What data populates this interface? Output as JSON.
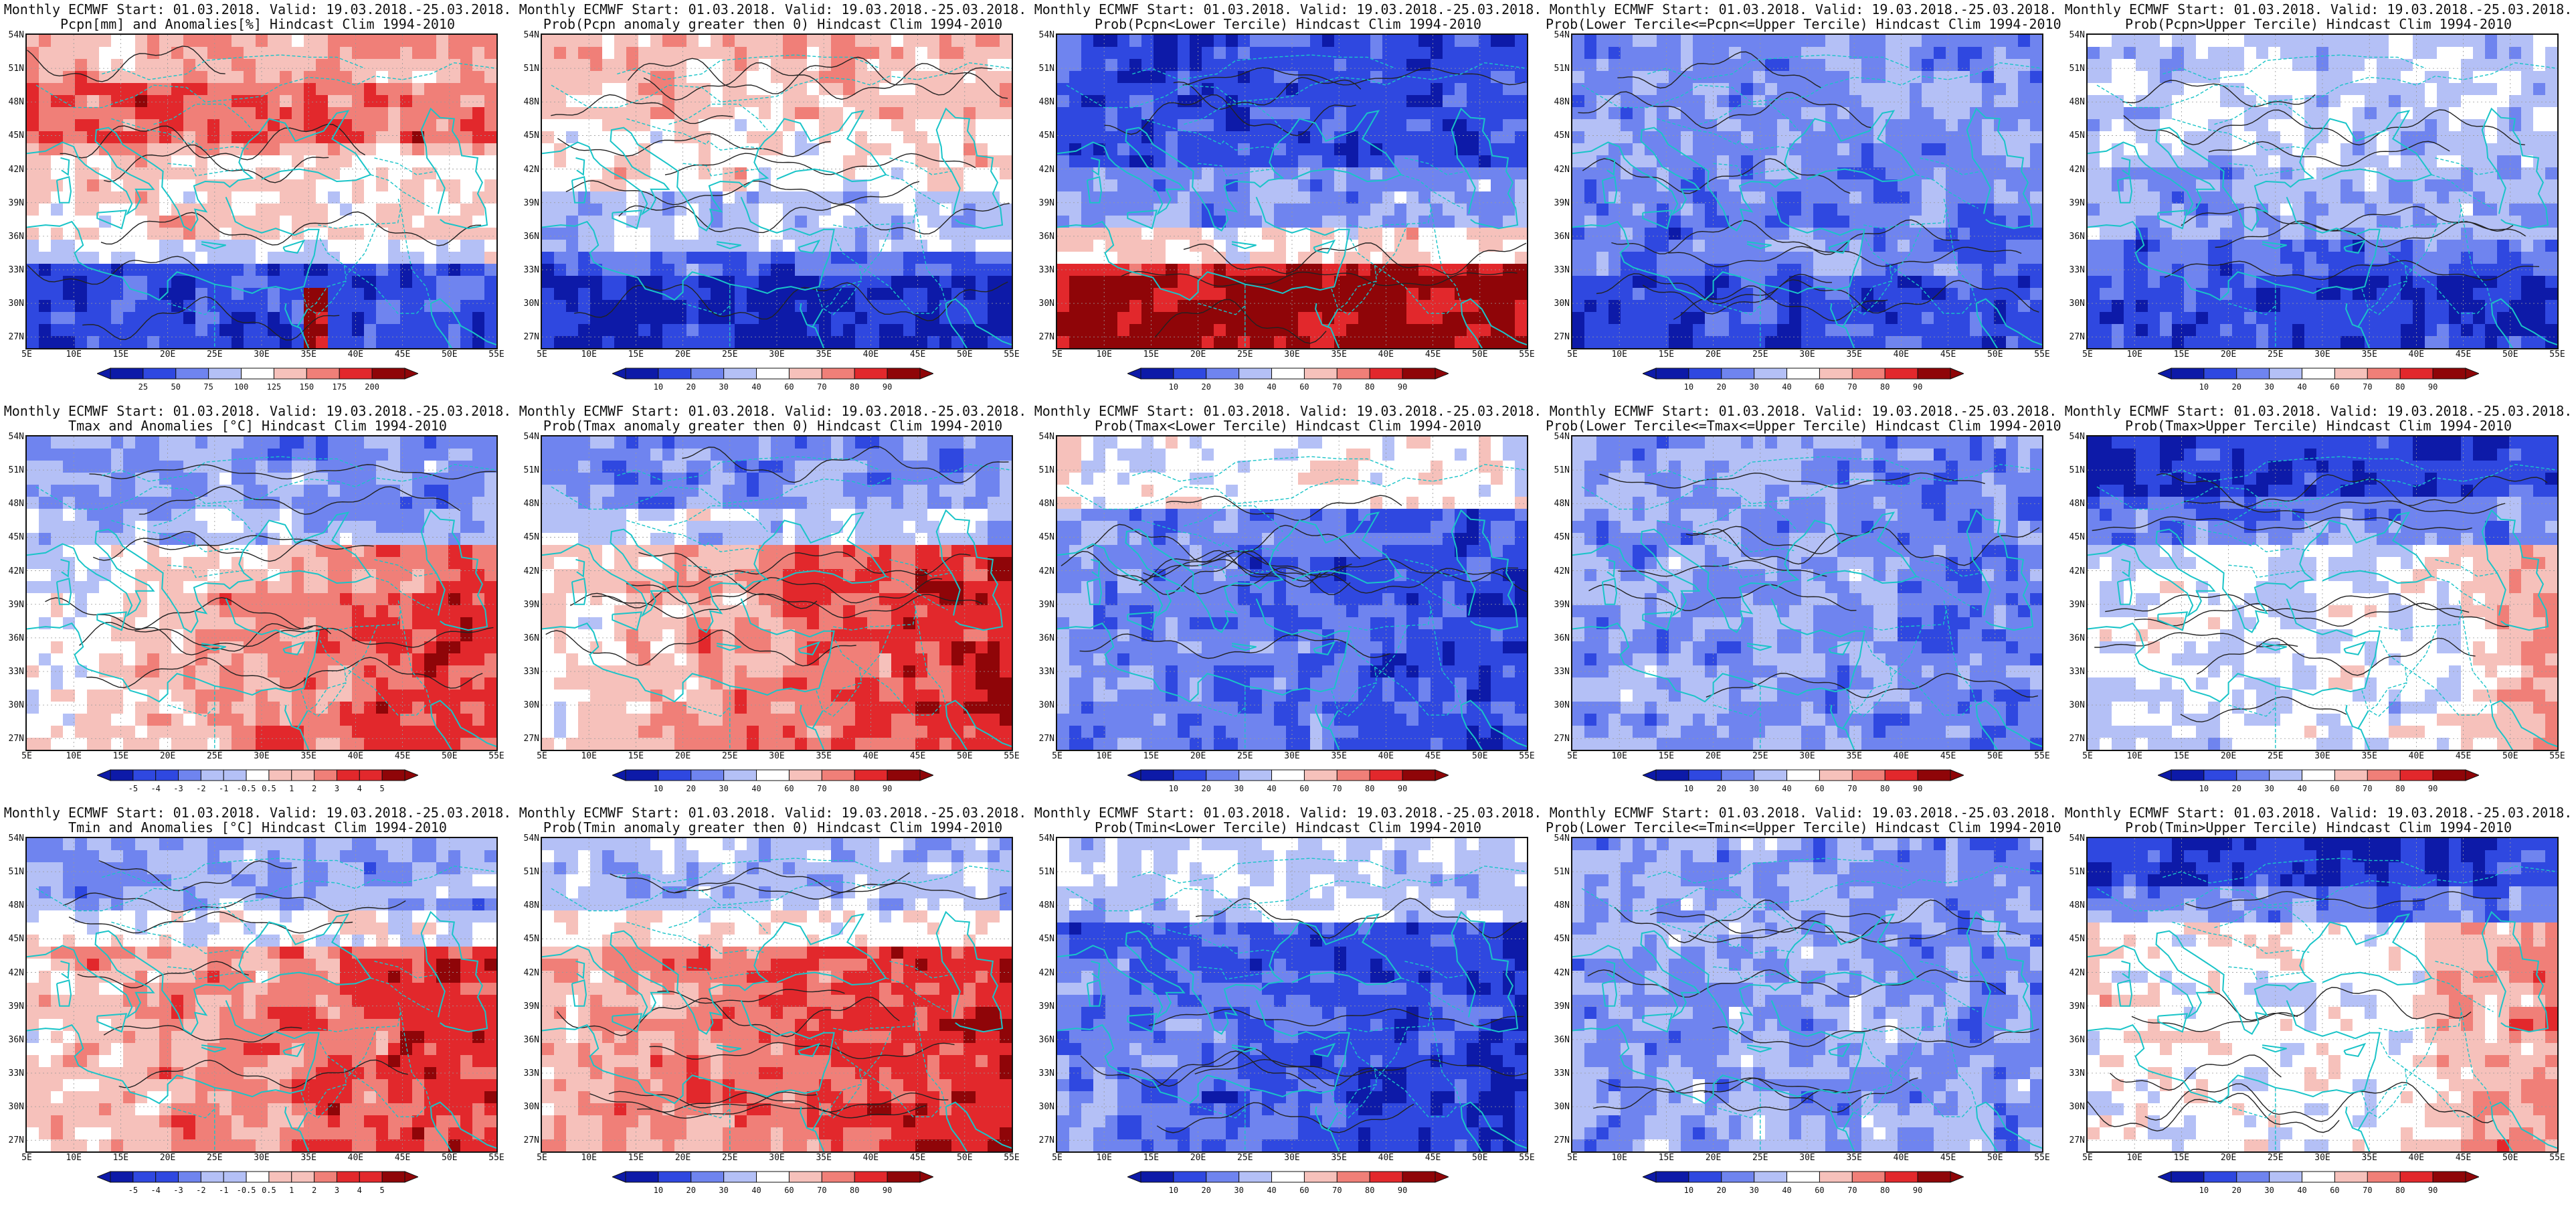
{
  "colors": {
    "blue_dark": "#0d1aa8",
    "blue": "#2f48e0",
    "blue_mid": "#6f84ef",
    "blue_light": "#b4c0f6",
    "white": "#ffffff",
    "red_light": "#f6c1bb",
    "red_mid": "#f07f78",
    "red": "#e2282c",
    "red_dark": "#8f0508",
    "coast": "#1ac4c8",
    "contour": "#222222"
  },
  "axes": {
    "lat_labels": [
      "54N",
      "51N",
      "48N",
      "45N",
      "42N",
      "39N",
      "36N",
      "33N",
      "30N",
      "27N"
    ],
    "lon_labels": [
      "5E",
      "10E",
      "15E",
      "20E",
      "25E",
      "30E",
      "35E",
      "40E",
      "45E",
      "50E",
      "55E"
    ]
  },
  "panels": [
    {
      "id": "p1",
      "title1": "Monthly ECMWF Start: 01.03.2018. Valid: 19.03.2018.-25.03.2018.",
      "title2": "Pcpn[mm] and Anomalies[%] Hindcast Clim 1994-2010",
      "colorbar": [
        "25",
        "50",
        "75",
        "100",
        "125",
        "150",
        "175",
        "200"
      ],
      "field": "pcpn_anom"
    },
    {
      "id": "p2",
      "title1": "Monthly ECMWF Start: 01.03.2018. Valid: 19.03.2018.-25.03.2018.",
      "title2": "Prob(Pcpn anomaly greater then 0) Hindcast Clim 1994-2010",
      "colorbar": [
        "10",
        "20",
        "30",
        "40",
        "60",
        "70",
        "80",
        "90"
      ],
      "field": "pcpn_pos"
    },
    {
      "id": "p3",
      "title1": "Monthly ECMWF Start: 01.03.2018. Valid: 19.03.2018.-25.03.2018.",
      "title2": "Prob(Pcpn<Lower Tercile) Hindcast Clim 1994-2010",
      "colorbar": [
        "10",
        "20",
        "30",
        "40",
        "60",
        "70",
        "80",
        "90"
      ],
      "field": "pcpn_low"
    },
    {
      "id": "p4",
      "title1": "Monthly ECMWF Start: 01.03.2018. Valid: 19.03.2018.-25.03.2018.",
      "title2": "Prob(Lower Tercile<=Pcpn<=Upper Tercile) Hindcast Clim 1994-2010",
      "colorbar": [
        "10",
        "20",
        "30",
        "40",
        "60",
        "70",
        "80",
        "90"
      ],
      "field": "pcpn_mid"
    },
    {
      "id": "p5",
      "title1": "Monthly ECMWF Start: 01.03.2018. Valid: 19.03.2018.-25.03.2018.",
      "title2": "Prob(Pcpn>Upper Tercile) Hindcast Clim 1994-2010",
      "colorbar": [
        "10",
        "20",
        "30",
        "40",
        "60",
        "70",
        "80",
        "90"
      ],
      "field": "pcpn_high"
    },
    {
      "id": "p6",
      "title1": "Monthly ECMWF Start: 01.03.2018. Valid: 19.03.2018.-25.03.2018.",
      "title2": "Tmax and Anomalies [°C] Hindcast Clim 1994-2010",
      "colorbar": [
        "-5",
        "-4",
        "-3",
        "-2",
        "-1",
        "-0.5",
        "0.5",
        "1",
        "2",
        "3",
        "4",
        "5"
      ],
      "field": "tmax_anom"
    },
    {
      "id": "p7",
      "title1": "Monthly ECMWF Start: 01.03.2018. Valid: 19.03.2018.-25.03.2018.",
      "title2": "Prob(Tmax anomaly greater then 0) Hindcast Clim 1994-2010",
      "colorbar": [
        "10",
        "20",
        "30",
        "40",
        "60",
        "70",
        "80",
        "90"
      ],
      "field": "tmax_pos"
    },
    {
      "id": "p8",
      "title1": "Monthly ECMWF Start: 01.03.2018. Valid: 19.03.2018.-25.03.2018.",
      "title2": "Prob(Tmax<Lower Tercile) Hindcast Clim 1994-2010",
      "colorbar": [
        "10",
        "20",
        "30",
        "40",
        "60",
        "70",
        "80",
        "90"
      ],
      "field": "tmax_low"
    },
    {
      "id": "p9",
      "title1": "Monthly ECMWF Start: 01.03.2018. Valid: 19.03.2018.-25.03.2018.",
      "title2": "Prob(Lower Tercile<=Tmax<=Upper Tercile) Hindcast Clim 1994-2010",
      "colorbar": [
        "10",
        "20",
        "30",
        "40",
        "60",
        "70",
        "80",
        "90"
      ],
      "field": "tmax_mid"
    },
    {
      "id": "p10",
      "title1": "Monthly ECMWF Start: 01.03.2018. Valid: 19.03.2018.-25.03.2018.",
      "title2": "Prob(Tmax>Upper Tercile) Hindcast Clim 1994-2010",
      "colorbar": [
        "10",
        "20",
        "30",
        "40",
        "60",
        "70",
        "80",
        "90"
      ],
      "field": "tmax_high"
    },
    {
      "id": "p11",
      "title1": "Monthly ECMWF Start: 01.03.2018. Valid: 19.03.2018.-25.03.2018.",
      "title2": "Tmin and Anomalies [°C] Hindcast Clim 1994-2010",
      "colorbar": [
        "-5",
        "-4",
        "-3",
        "-2",
        "-1",
        "-0.5",
        "0.5",
        "1",
        "2",
        "3",
        "4",
        "5"
      ],
      "field": "tmin_anom"
    },
    {
      "id": "p12",
      "title1": "Monthly ECMWF Start: 01.03.2018. Valid: 19.03.2018.-25.03.2018.",
      "title2": "Prob(Tmin anomaly greater then 0) Hindcast Clim 1994-2010",
      "colorbar": [
        "10",
        "20",
        "30",
        "40",
        "60",
        "70",
        "80",
        "90"
      ],
      "field": "tmin_pos"
    },
    {
      "id": "p13",
      "title1": "Monthly ECMWF Start: 01.03.2018. Valid: 19.03.2018.-25.03.2018.",
      "title2": "Prob(Tmin<Lower Tercile) Hindcast Clim 1994-2010",
      "colorbar": [
        "10",
        "20",
        "30",
        "40",
        "60",
        "70",
        "80",
        "90"
      ],
      "field": "tmin_low"
    },
    {
      "id": "p14",
      "title1": "Monthly ECMWF Start: 01.03.2018. Valid: 19.03.2018.-25.03.2018.",
      "title2": "Prob(Lower Tercile<=Tmin<=Upper Tercile) Hindcast Clim 1994-2010",
      "colorbar": [
        "10",
        "20",
        "30",
        "40",
        "60",
        "70",
        "80",
        "90"
      ],
      "field": "tmin_mid"
    },
    {
      "id": "p15",
      "title1": "Monthly ECMWF Start: 01.03.2018. Valid: 19.03.2018.-25.03.2018.",
      "title2": "Prob(Tmin>Upper Tercile) Hindcast Clim 1994-2010",
      "colorbar": [
        "10",
        "20",
        "30",
        "40",
        "60",
        "70",
        "80",
        "90"
      ],
      "field": "tmin_high"
    }
  ]
}
